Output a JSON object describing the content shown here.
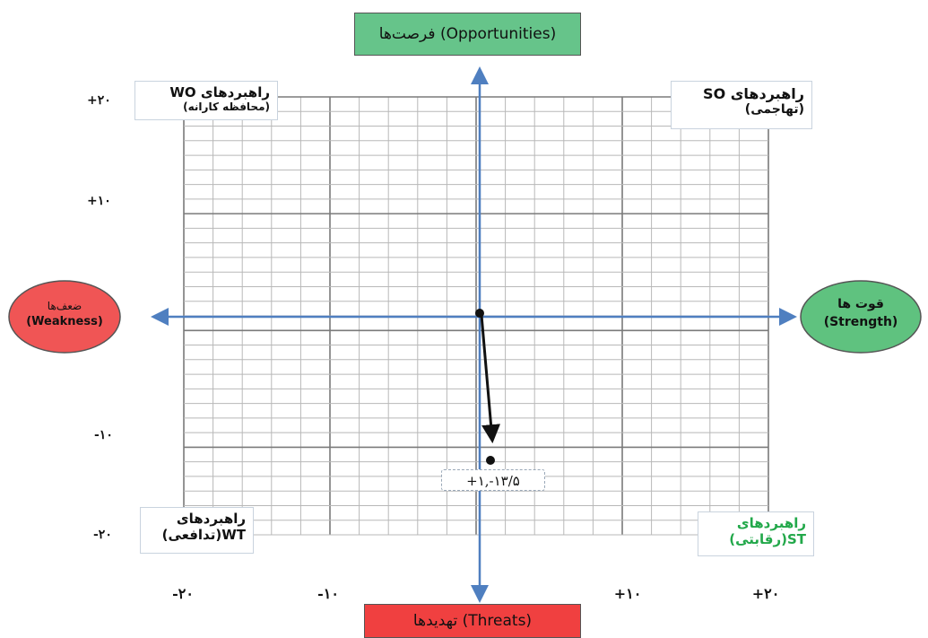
{
  "colors": {
    "grid_minor": "#b8b8b8",
    "grid_major": "#7a7a7a",
    "axis": "#4f7fc0",
    "opportunities_fill": "#66c48a",
    "threats_fill": "#f04040",
    "weakness_fill": "#f05555",
    "strength_fill": "#5fc27f",
    "st_text": "#22a84a"
  },
  "top_banner": {
    "label": "فرصت‌ها (Opportunities)"
  },
  "bottom_banner": {
    "label": "تهدیدها (Threats)"
  },
  "weakness": {
    "line1": "ضعف‌ها",
    "line2": "(Weakness)"
  },
  "strength": {
    "line1": "قوت ها",
    "line2": "(Strength)"
  },
  "quadrants": {
    "wo": {
      "line1": "راهبردهای WO",
      "line2": "(محافظه کارانه)"
    },
    "so": {
      "line1": "راهبردهای SO",
      "line2": "(تهاجمی)"
    },
    "wt": {
      "line1": "راهبردهای",
      "line2": "WT(تدافعی)"
    },
    "st": {
      "line1": "راهبردهای",
      "line2": "ST(رقابتی)"
    }
  },
  "y_ticks": [
    "+۲۰",
    "+۱۰",
    "-۱۰",
    "-۲۰"
  ],
  "x_ticks": [
    "-۲۰",
    "-۱۰",
    "+۱۰",
    "+۲۰"
  ],
  "point_label": "+۱,-۱۳/۵",
  "chart_data": {
    "type": "scatter",
    "x_range": [
      -20,
      20
    ],
    "y_range": [
      -20,
      20
    ],
    "grid": true,
    "points": [
      {
        "x": 1,
        "y": -13.5,
        "label": "+۱,-۱۳/۵"
      }
    ]
  }
}
